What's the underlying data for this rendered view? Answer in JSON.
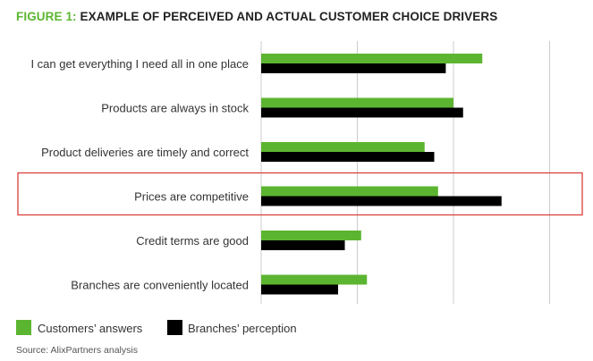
{
  "title": {
    "figure": "FIGURE 1:",
    "text": "EXAMPLE OF PERCEIVED AND ACTUAL CUSTOMER CHOICE DRIVERS"
  },
  "source": "Source: AlixPartners analysis",
  "colors": {
    "customers": "#5cb531",
    "branches": "#000000",
    "highlight": "#d9403a",
    "grid": "#cccccc",
    "title_accent": "#5cb531"
  },
  "chart_data": {
    "type": "bar",
    "orientation": "horizontal",
    "categories": [
      "I can get everything I need all in one place",
      "Products are always in stock",
      "Product deliveries are timely and correct",
      "Prices are competitive",
      "Credit terms are good",
      "Branches are conveniently located"
    ],
    "series": [
      {
        "name": "Customers’ answers",
        "values": [
          2.3,
          2.0,
          1.7,
          1.84,
          1.04,
          1.1
        ]
      },
      {
        "name": "Branches’ perception",
        "values": [
          1.92,
          2.1,
          1.8,
          2.5,
          0.87,
          0.8
        ]
      }
    ],
    "xlim": [
      0,
      3
    ],
    "grid": true,
    "highlighted_category": "Prices are competitive",
    "legend_position": "bottom-left"
  }
}
